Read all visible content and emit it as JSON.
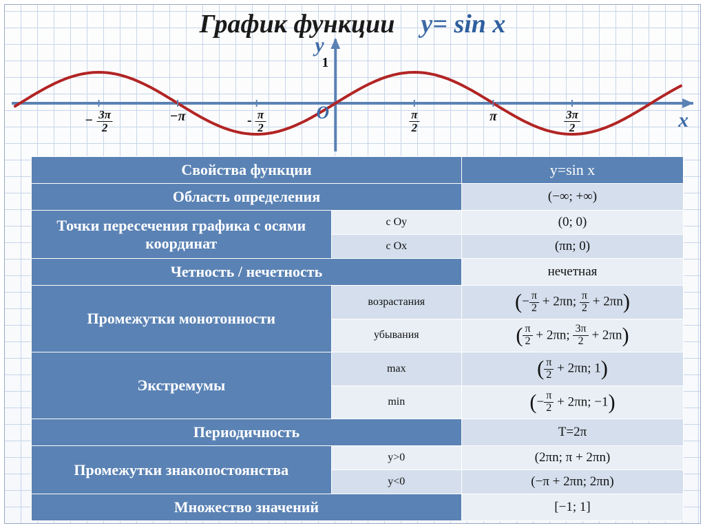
{
  "title": {
    "label": "График  функции",
    "formula_prefix": "y= ",
    "formula_func": "sin x"
  },
  "chart": {
    "type": "line",
    "curve_color": "#b22424",
    "curve_width": 4,
    "axis_color": "#5a82b4",
    "axis_width": 4,
    "y_axis_label": "y",
    "x_axis_label": "x",
    "origin_label": "O",
    "one_label": "1",
    "x_ticks": [
      {
        "label_html": "− <span class='frac'><span class='n'>3π</span><span class='d'>2</span></span>",
        "x": -4.712
      },
      {
        "label_html": "−π",
        "x": -3.1416
      },
      {
        "label_html": "- <span class='frac'><span class='n'>π</span><span class='d'>2</span></span>",
        "x": -1.5708
      },
      {
        "label_html": "<span class='frac'><span class='n'>π</span><span class='d'>2</span></span>",
        "x": 1.5708
      },
      {
        "label_html": "π",
        "x": 3.1416
      },
      {
        "label_html": "<span class='frac'><span class='n'>3π</span><span class='d'>2</span></span>",
        "x": 4.712
      }
    ],
    "x_range": [
      -6.4,
      6.9
    ],
    "amplitude": 1,
    "samples": 220
  },
  "table": {
    "hdr_left": "Свойства функции",
    "hdr_right": "y=sin x",
    "rows": [
      {
        "prop": "Область определения",
        "sub": "",
        "val": "(−∞; +∞)",
        "cls": "A",
        "span": 2
      },
      {
        "prop": "Точки пересечения графика с осями координат",
        "sub": "с Oy",
        "val": "(0; 0)",
        "cls": "B",
        "rowspan": 2
      },
      {
        "sub": "с Ox",
        "val": "(πn; 0)",
        "cls": "A"
      },
      {
        "prop": "Четность / нечетность",
        "sub": "",
        "val": "нечетная",
        "cls": "B",
        "span": 2
      },
      {
        "prop": "Промежутки монотонности",
        "sub": "возрастания",
        "val_html": "<span class='big'>(</span>−<span class='frac'><span class='n'>π</span><span class='d'>2</span></span> + 2πn; <span class='frac'><span class='n'>π</span><span class='d'>2</span></span> + 2πn<span class='big'>)</span>",
        "cls": "A",
        "rowspan": 2
      },
      {
        "sub": "убывания",
        "val_html": "<span class='big'>(</span><span class='frac'><span class='n'>π</span><span class='d'>2</span></span> + 2πn; <span class='frac'><span class='n'>3π</span><span class='d'>2</span></span> + 2πn<span class='big'>)</span>",
        "cls": "B"
      },
      {
        "prop": "Экстремумы",
        "sub": "max",
        "val_html": "<span class='big'>(</span><span class='frac'><span class='n'>π</span><span class='d'>2</span></span> + 2πn; 1<span class='big'>)</span>",
        "cls": "A",
        "rowspan": 2
      },
      {
        "sub": "min",
        "val_html": "<span class='big'>(</span>−<span class='frac'><span class='n'>π</span><span class='d'>2</span></span> + 2πn; −1<span class='big'>)</span>",
        "cls": "B"
      },
      {
        "prop": "Периодичность",
        "sub": "",
        "val": "T=2π",
        "cls": "A",
        "span": 2
      },
      {
        "prop": "Промежутки знакопостоянства",
        "sub": "y>0",
        "val": "(2πn; π + 2πn)",
        "cls": "B",
        "rowspan": 2
      },
      {
        "sub": "y<0",
        "val": "(−π + 2πn; 2πn)",
        "cls": "A"
      },
      {
        "prop": "Множество значений",
        "sub": "",
        "val": "[−1; 1]",
        "cls": "B",
        "span": 2
      }
    ]
  }
}
